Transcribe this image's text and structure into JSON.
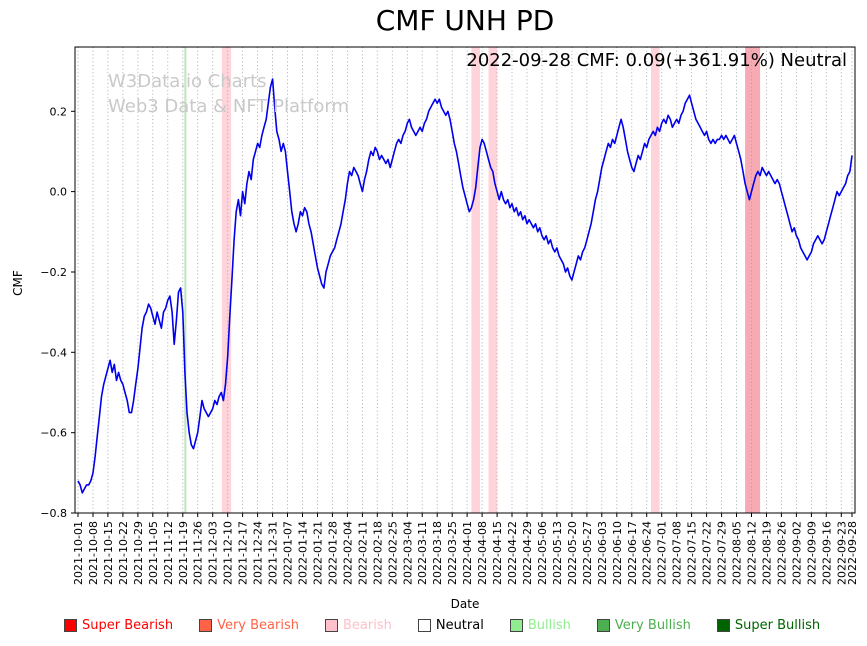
{
  "title": "CMF UNH PD",
  "annotation": "2022-09-28 CMF: 0.09(+361.91%) Neutral",
  "watermark": {
    "line1": "W3Data.io Charts",
    "line2": "Web3 Data & NFT Platform"
  },
  "axes": {
    "xlabel": "Date",
    "ylabel": "CMF"
  },
  "legend": {
    "items": [
      {
        "label": "Super Bearish",
        "color": "#ff0000",
        "text_color": "#ff0000"
      },
      {
        "label": "Very Bearish",
        "color": "#ff6347",
        "text_color": "#ff6347"
      },
      {
        "label": "Bearish",
        "color": "#ffc0cb",
        "text_color": "#ffc0cb"
      },
      {
        "label": "Neutral",
        "color": "#ffffff",
        "text_color": "#000000"
      },
      {
        "label": "Bullish",
        "color": "#90ee90",
        "text_color": "#90ee90"
      },
      {
        "label": "Very Bullish",
        "color": "#4caf50",
        "text_color": "#4caf50"
      },
      {
        "label": "Super Bullish",
        "color": "#006400",
        "text_color": "#006400"
      }
    ]
  },
  "chart_data": {
    "type": "line",
    "series_name": "CMF",
    "line_color": "#0000ee",
    "title": "CMF UNH PD",
    "xlabel": "Date",
    "ylabel": "CMF",
    "ylim": [
      -0.8,
      0.36
    ],
    "y_ticks": [
      0.2,
      0.0,
      -0.2,
      -0.4,
      -0.6,
      -0.8
    ],
    "x_unit": "days since 2021-10-01",
    "x_start_date": "2021-10-01",
    "x_end_date": "2022-09-28",
    "grid": "vertical-dotted",
    "legend_position": "bottom",
    "last_value": 0.09,
    "last_change_pct": "+361.91%",
    "last_sentiment": "Neutral",
    "x_tick_days": [
      0,
      7,
      14,
      21,
      28,
      35,
      42,
      49,
      56,
      63,
      70,
      77,
      84,
      91,
      98,
      105,
      112,
      119,
      126,
      133,
      140,
      147,
      154,
      161,
      168,
      175,
      182,
      189,
      196,
      203,
      210,
      217,
      224,
      231,
      238,
      245,
      252,
      259,
      266,
      273,
      280,
      287,
      294,
      301,
      308,
      315,
      322,
      329,
      336,
      343,
      350,
      357,
      362
    ],
    "x_tick_labels": [
      "2021-10-01",
      "2021-10-08",
      "2021-10-15",
      "2021-10-22",
      "2021-10-29",
      "2021-11-05",
      "2021-11-12",
      "2021-11-19",
      "2021-11-26",
      "2021-12-03",
      "2021-12-10",
      "2021-12-17",
      "2021-12-24",
      "2021-12-31",
      "2022-01-07",
      "2022-01-14",
      "2022-01-21",
      "2022-01-28",
      "2022-02-04",
      "2022-02-11",
      "2022-02-18",
      "2022-02-25",
      "2022-03-04",
      "2022-03-11",
      "2022-03-18",
      "2022-03-25",
      "2022-04-01",
      "2022-04-08",
      "2022-04-15",
      "2022-04-22",
      "2022-04-29",
      "2022-05-06",
      "2022-05-13",
      "2022-05-20",
      "2022-05-27",
      "2022-06-03",
      "2022-06-10",
      "2022-06-17",
      "2022-06-24",
      "2022-07-01",
      "2022-07-08",
      "2022-07-15",
      "2022-07-22",
      "2022-07-29",
      "2022-08-05",
      "2022-08-12",
      "2022-08-19",
      "2022-08-26",
      "2022-09-02",
      "2022-09-09",
      "2022-09-16",
      "2022-09-23",
      "2022-09-28"
    ],
    "bands": [
      {
        "sentiment": "bearish",
        "start_day": 67.3,
        "end_day": 71.6,
        "color": "#ffb6c1",
        "opacity": 0.6
      },
      {
        "sentiment": "bearish",
        "start_day": 184,
        "end_day": 188,
        "color": "#ffb6c1",
        "opacity": 0.6
      },
      {
        "sentiment": "bearish",
        "start_day": 192,
        "end_day": 196,
        "color": "#ffb6c1",
        "opacity": 0.6
      },
      {
        "sentiment": "bearish",
        "start_day": 268,
        "end_day": 272,
        "color": "#ffb6c1",
        "opacity": 0.6
      },
      {
        "sentiment": "very-bearish",
        "start_day": 312,
        "end_day": 319,
        "color": "#f59ba6",
        "opacity": 0.85
      },
      {
        "sentiment": "bullish",
        "start_day": 49.7,
        "end_day": 50.7,
        "color": "#b9e2b9",
        "opacity": 0.9
      }
    ],
    "values_daily": [
      -0.72,
      -0.73,
      -0.75,
      -0.74,
      -0.73,
      -0.73,
      -0.72,
      -0.7,
      -0.66,
      -0.61,
      -0.56,
      -0.51,
      -0.48,
      -0.46,
      -0.44,
      -0.42,
      -0.45,
      -0.43,
      -0.47,
      -0.45,
      -0.47,
      -0.48,
      -0.5,
      -0.52,
      -0.55,
      -0.55,
      -0.52,
      -0.48,
      -0.44,
      -0.39,
      -0.34,
      -0.31,
      -0.3,
      -0.28,
      -0.29,
      -0.31,
      -0.33,
      -0.3,
      -0.32,
      -0.34,
      -0.3,
      -0.29,
      -0.27,
      -0.26,
      -0.3,
      -0.38,
      -0.32,
      -0.25,
      -0.24,
      -0.3,
      -0.45,
      -0.55,
      -0.6,
      -0.63,
      -0.64,
      -0.62,
      -0.6,
      -0.56,
      -0.52,
      -0.54,
      -0.55,
      -0.56,
      -0.55,
      -0.54,
      -0.52,
      -0.53,
      -0.51,
      -0.5,
      -0.52,
      -0.48,
      -0.41,
      -0.31,
      -0.22,
      -0.12,
      -0.05,
      -0.02,
      -0.06,
      0.0,
      -0.03,
      0.02,
      0.05,
      0.03,
      0.08,
      0.1,
      0.12,
      0.11,
      0.14,
      0.16,
      0.18,
      0.22,
      0.26,
      0.28,
      0.21,
      0.15,
      0.13,
      0.1,
      0.12,
      0.1,
      0.05,
      0.0,
      -0.05,
      -0.08,
      -0.1,
      -0.08,
      -0.05,
      -0.06,
      -0.04,
      -0.05,
      -0.08,
      -0.1,
      -0.13,
      -0.16,
      -0.19,
      -0.21,
      -0.23,
      -0.24,
      -0.2,
      -0.18,
      -0.16,
      -0.15,
      -0.14,
      -0.12,
      -0.1,
      -0.08,
      -0.05,
      -0.02,
      0.02,
      0.05,
      0.04,
      0.06,
      0.05,
      0.04,
      0.02,
      0.0,
      0.03,
      0.05,
      0.08,
      0.1,
      0.09,
      0.11,
      0.1,
      0.08,
      0.09,
      0.08,
      0.07,
      0.08,
      0.06,
      0.08,
      0.1,
      0.12,
      0.13,
      0.12,
      0.14,
      0.15,
      0.17,
      0.18,
      0.16,
      0.15,
      0.14,
      0.15,
      0.16,
      0.15,
      0.17,
      0.18,
      0.2,
      0.21,
      0.22,
      0.23,
      0.22,
      0.23,
      0.21,
      0.2,
      0.19,
      0.2,
      0.18,
      0.15,
      0.12,
      0.1,
      0.07,
      0.04,
      0.01,
      -0.01,
      -0.03,
      -0.05,
      -0.04,
      -0.02,
      0.01,
      0.06,
      0.11,
      0.13,
      0.12,
      0.1,
      0.08,
      0.06,
      0.05,
      0.02,
      0.0,
      -0.02,
      0.0,
      -0.02,
      -0.03,
      -0.02,
      -0.04,
      -0.03,
      -0.05,
      -0.04,
      -0.06,
      -0.05,
      -0.07,
      -0.06,
      -0.08,
      -0.07,
      -0.08,
      -0.09,
      -0.08,
      -0.1,
      -0.09,
      -0.11,
      -0.12,
      -0.11,
      -0.13,
      -0.12,
      -0.14,
      -0.15,
      -0.14,
      -0.16,
      -0.17,
      -0.18,
      -0.2,
      -0.19,
      -0.21,
      -0.22,
      -0.2,
      -0.18,
      -0.16,
      -0.17,
      -0.15,
      -0.14,
      -0.12,
      -0.1,
      -0.08,
      -0.05,
      -0.02,
      0.0,
      0.03,
      0.06,
      0.08,
      0.1,
      0.12,
      0.11,
      0.13,
      0.12,
      0.14,
      0.16,
      0.18,
      0.16,
      0.13,
      0.1,
      0.08,
      0.06,
      0.05,
      0.07,
      0.09,
      0.08,
      0.1,
      0.12,
      0.11,
      0.13,
      0.14,
      0.15,
      0.14,
      0.16,
      0.15,
      0.17,
      0.18,
      0.17,
      0.19,
      0.18,
      0.16,
      0.17,
      0.18,
      0.17,
      0.19,
      0.2,
      0.22,
      0.23,
      0.24,
      0.22,
      0.2,
      0.18,
      0.17,
      0.16,
      0.15,
      0.14,
      0.15,
      0.13,
      0.12,
      0.13,
      0.12,
      0.13,
      0.13,
      0.14,
      0.13,
      0.14,
      0.13,
      0.12,
      0.13,
      0.14,
      0.12,
      0.1,
      0.08,
      0.05,
      0.02,
      0.0,
      -0.02,
      0.0,
      0.02,
      0.04,
      0.05,
      0.04,
      0.06,
      0.05,
      0.04,
      0.05,
      0.04,
      0.03,
      0.02,
      0.03,
      0.02,
      0.0,
      -0.02,
      -0.04,
      -0.06,
      -0.08,
      -0.1,
      -0.09,
      -0.11,
      -0.12,
      -0.14,
      -0.15,
      -0.16,
      -0.17,
      -0.16,
      -0.15,
      -0.13,
      -0.12,
      -0.11,
      -0.12,
      -0.13,
      -0.12,
      -0.1,
      -0.08,
      -0.06,
      -0.04,
      -0.02,
      0.0,
      -0.01,
      0.0,
      0.01,
      0.02,
      0.04,
      0.05,
      0.09
    ]
  }
}
